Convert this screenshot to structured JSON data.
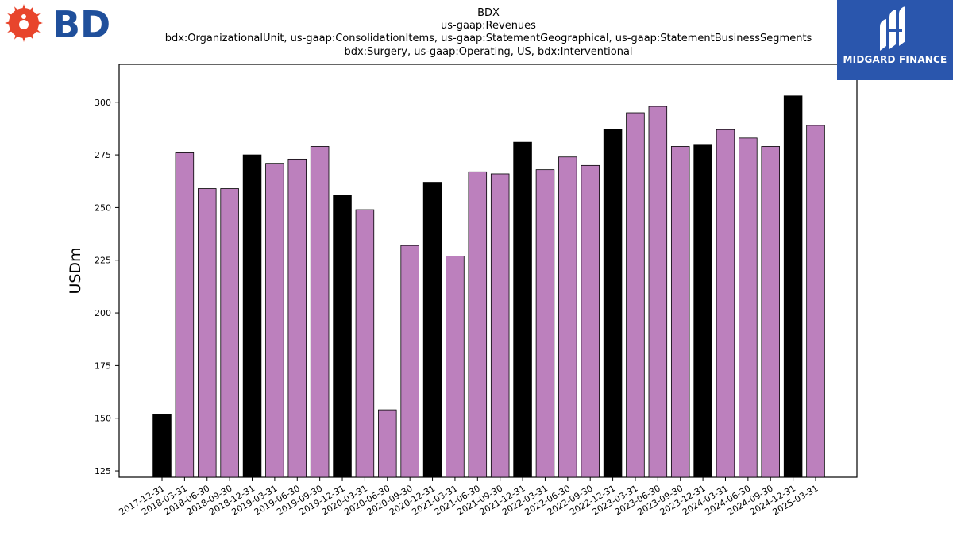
{
  "brand": {
    "left_logo_text": "BD",
    "right_logo_text": "MIDGARD FINANCE"
  },
  "colors": {
    "annual": "#000000",
    "quarterly": "#bc80bd",
    "bd_red": "#e8452c",
    "bd_blue": "#1f4f9b",
    "midgard_bg": "#2a56ad"
  },
  "chart_data": {
    "type": "bar",
    "title_lines": [
      "BDX",
      "us-gaap:Revenues",
      "bdx:OrganizationalUnit, us-gaap:ConsolidationItems, us-gaap:StatementGeographical, us-gaap:StatementBusinessSegments",
      "bdx:Surgery, us-gaap:Operating, US, bdx:Interventional"
    ],
    "xlabel": "",
    "ylabel": "USDm",
    "ylim": [
      122,
      318
    ],
    "yticks": [
      125,
      150,
      175,
      200,
      225,
      250,
      275,
      300
    ],
    "grid": false,
    "categories": [
      "2017-12-31",
      "2018-03-31",
      "2018-06-30",
      "2018-09-30",
      "2018-12-31",
      "2019-03-31",
      "2019-06-30",
      "2019-09-30",
      "2019-12-31",
      "2020-03-31",
      "2020-06-30",
      "2020-09-30",
      "2020-12-31",
      "2021-03-31",
      "2021-06-30",
      "2021-09-30",
      "2021-12-31",
      "2022-03-31",
      "2022-06-30",
      "2022-09-30",
      "2022-12-31",
      "2023-03-31",
      "2023-06-30",
      "2023-09-30",
      "2023-12-31",
      "2024-03-31",
      "2024-06-30",
      "2024-09-30",
      "2024-12-31",
      "2025-03-31"
    ],
    "values": [
      152,
      276,
      259,
      259,
      275,
      271,
      273,
      279,
      256,
      249,
      154,
      232,
      262,
      227,
      267,
      266,
      281,
      268,
      274,
      270,
      287,
      295,
      298,
      279,
      280,
      287,
      283,
      279,
      303,
      289
    ],
    "bar_kind": [
      "annual",
      "quarterly",
      "quarterly",
      "quarterly",
      "annual",
      "quarterly",
      "quarterly",
      "quarterly",
      "annual",
      "quarterly",
      "quarterly",
      "quarterly",
      "annual",
      "quarterly",
      "quarterly",
      "quarterly",
      "annual",
      "quarterly",
      "quarterly",
      "quarterly",
      "annual",
      "quarterly",
      "quarterly",
      "quarterly",
      "annual",
      "quarterly",
      "quarterly",
      "quarterly",
      "annual",
      "quarterly"
    ]
  }
}
